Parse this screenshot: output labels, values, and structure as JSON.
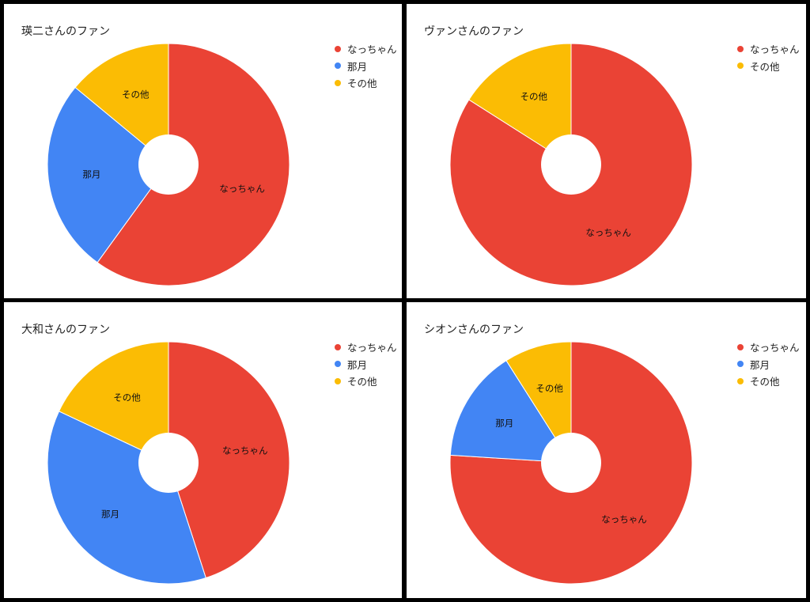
{
  "colors": {
    "nacchan": "#ea4335",
    "nazuki": "#4285f4",
    "other": "#fbbc04"
  },
  "chart_data": [
    {
      "type": "pie",
      "title": "瑛二さんのファン",
      "categories": [
        "なっちゃん",
        "那月",
        "その他"
      ],
      "values": [
        60,
        26,
        14
      ],
      "legend": [
        "なっちゃん",
        "那月",
        "その他"
      ],
      "legend_position": "top-right",
      "donut": true
    },
    {
      "type": "pie",
      "title": "ヴァンさんのファン",
      "categories": [
        "なっちゃん",
        "その他"
      ],
      "values": [
        84,
        16
      ],
      "legend": [
        "なっちゃん",
        "その他"
      ],
      "legend_position": "top-right",
      "donut": true
    },
    {
      "type": "pie",
      "title": "大和さんのファン",
      "categories": [
        "なっちゃん",
        "那月",
        "その他"
      ],
      "values": [
        45,
        37,
        18
      ],
      "legend": [
        "なっちゃん",
        "那月",
        "その他"
      ],
      "legend_position": "top-right",
      "donut": true
    },
    {
      "type": "pie",
      "title": "シオンさんのファン",
      "categories": [
        "なっちゃん",
        "那月",
        "その他"
      ],
      "values": [
        76,
        15,
        9
      ],
      "legend": [
        "なっちゃん",
        "那月",
        "その他"
      ],
      "legend_position": "top-right",
      "donut": true
    }
  ]
}
